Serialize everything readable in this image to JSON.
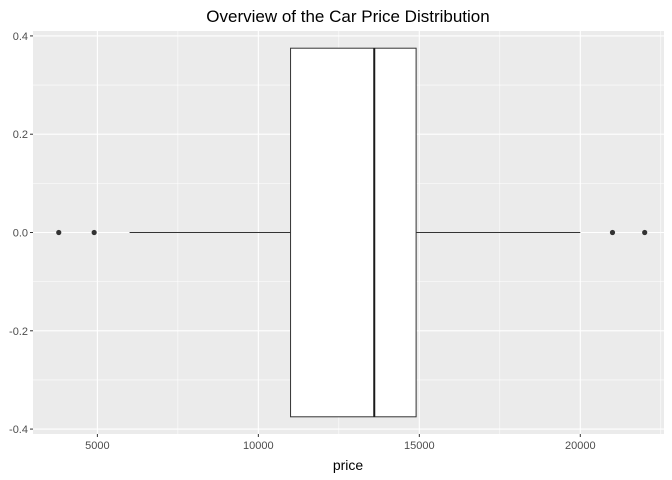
{
  "chart_data": {
    "type": "boxplot",
    "title": "Overview of the Car Price Distribution",
    "xlabel": "price",
    "ylabel": "",
    "xlim": [
      3000,
      22600
    ],
    "ylim": [
      -0.41,
      0.41
    ],
    "x_major_ticks": [
      5000,
      10000,
      15000,
      20000
    ],
    "x_minor_ticks": [
      2500,
      7500,
      12500,
      17500,
      22500
    ],
    "x_tick_labels": [
      "5000",
      "10000",
      "15000",
      "20000"
    ],
    "y_major_ticks": [
      -0.4,
      -0.2,
      0.0,
      0.2,
      0.4
    ],
    "y_minor_ticks": [
      -0.3,
      -0.1,
      0.1,
      0.3
    ],
    "y_tick_labels": [
      "-0.4",
      "-0.2",
      "0.0",
      "0.2",
      "0.4"
    ],
    "grid": true,
    "box": {
      "center_y": 0,
      "half_height": 0.375,
      "whisker_low": 6000,
      "q1": 11000,
      "median": 13600,
      "q3": 14900,
      "whisker_high": 20000,
      "outliers": [
        3800,
        4900,
        21000,
        22000
      ]
    },
    "colors": {
      "panel_background": "#ebebeb",
      "box_fill": "#ffffff",
      "outline": "#333333"
    }
  }
}
